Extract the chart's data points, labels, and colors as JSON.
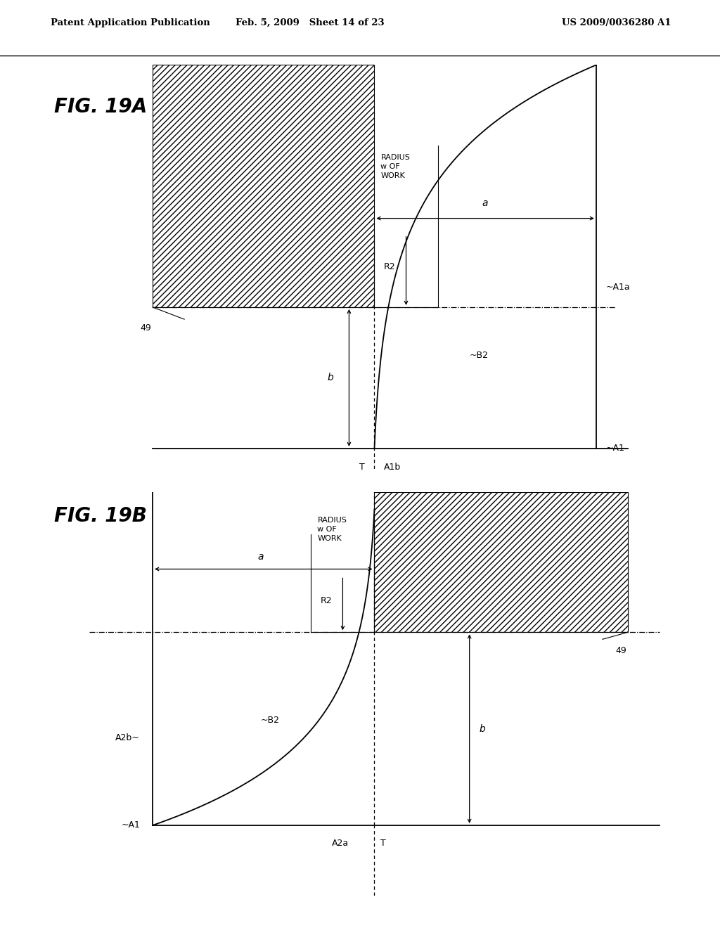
{
  "header_left": "Patent Application Publication",
  "header_center": "Feb. 5, 2009   Sheet 14 of 23",
  "header_right": "US 2009/0036280 A1",
  "fig_a_label": "FIG. 19A",
  "fig_b_label": "FIG. 19B",
  "bg_color": "#ffffff",
  "line_color": "#000000"
}
